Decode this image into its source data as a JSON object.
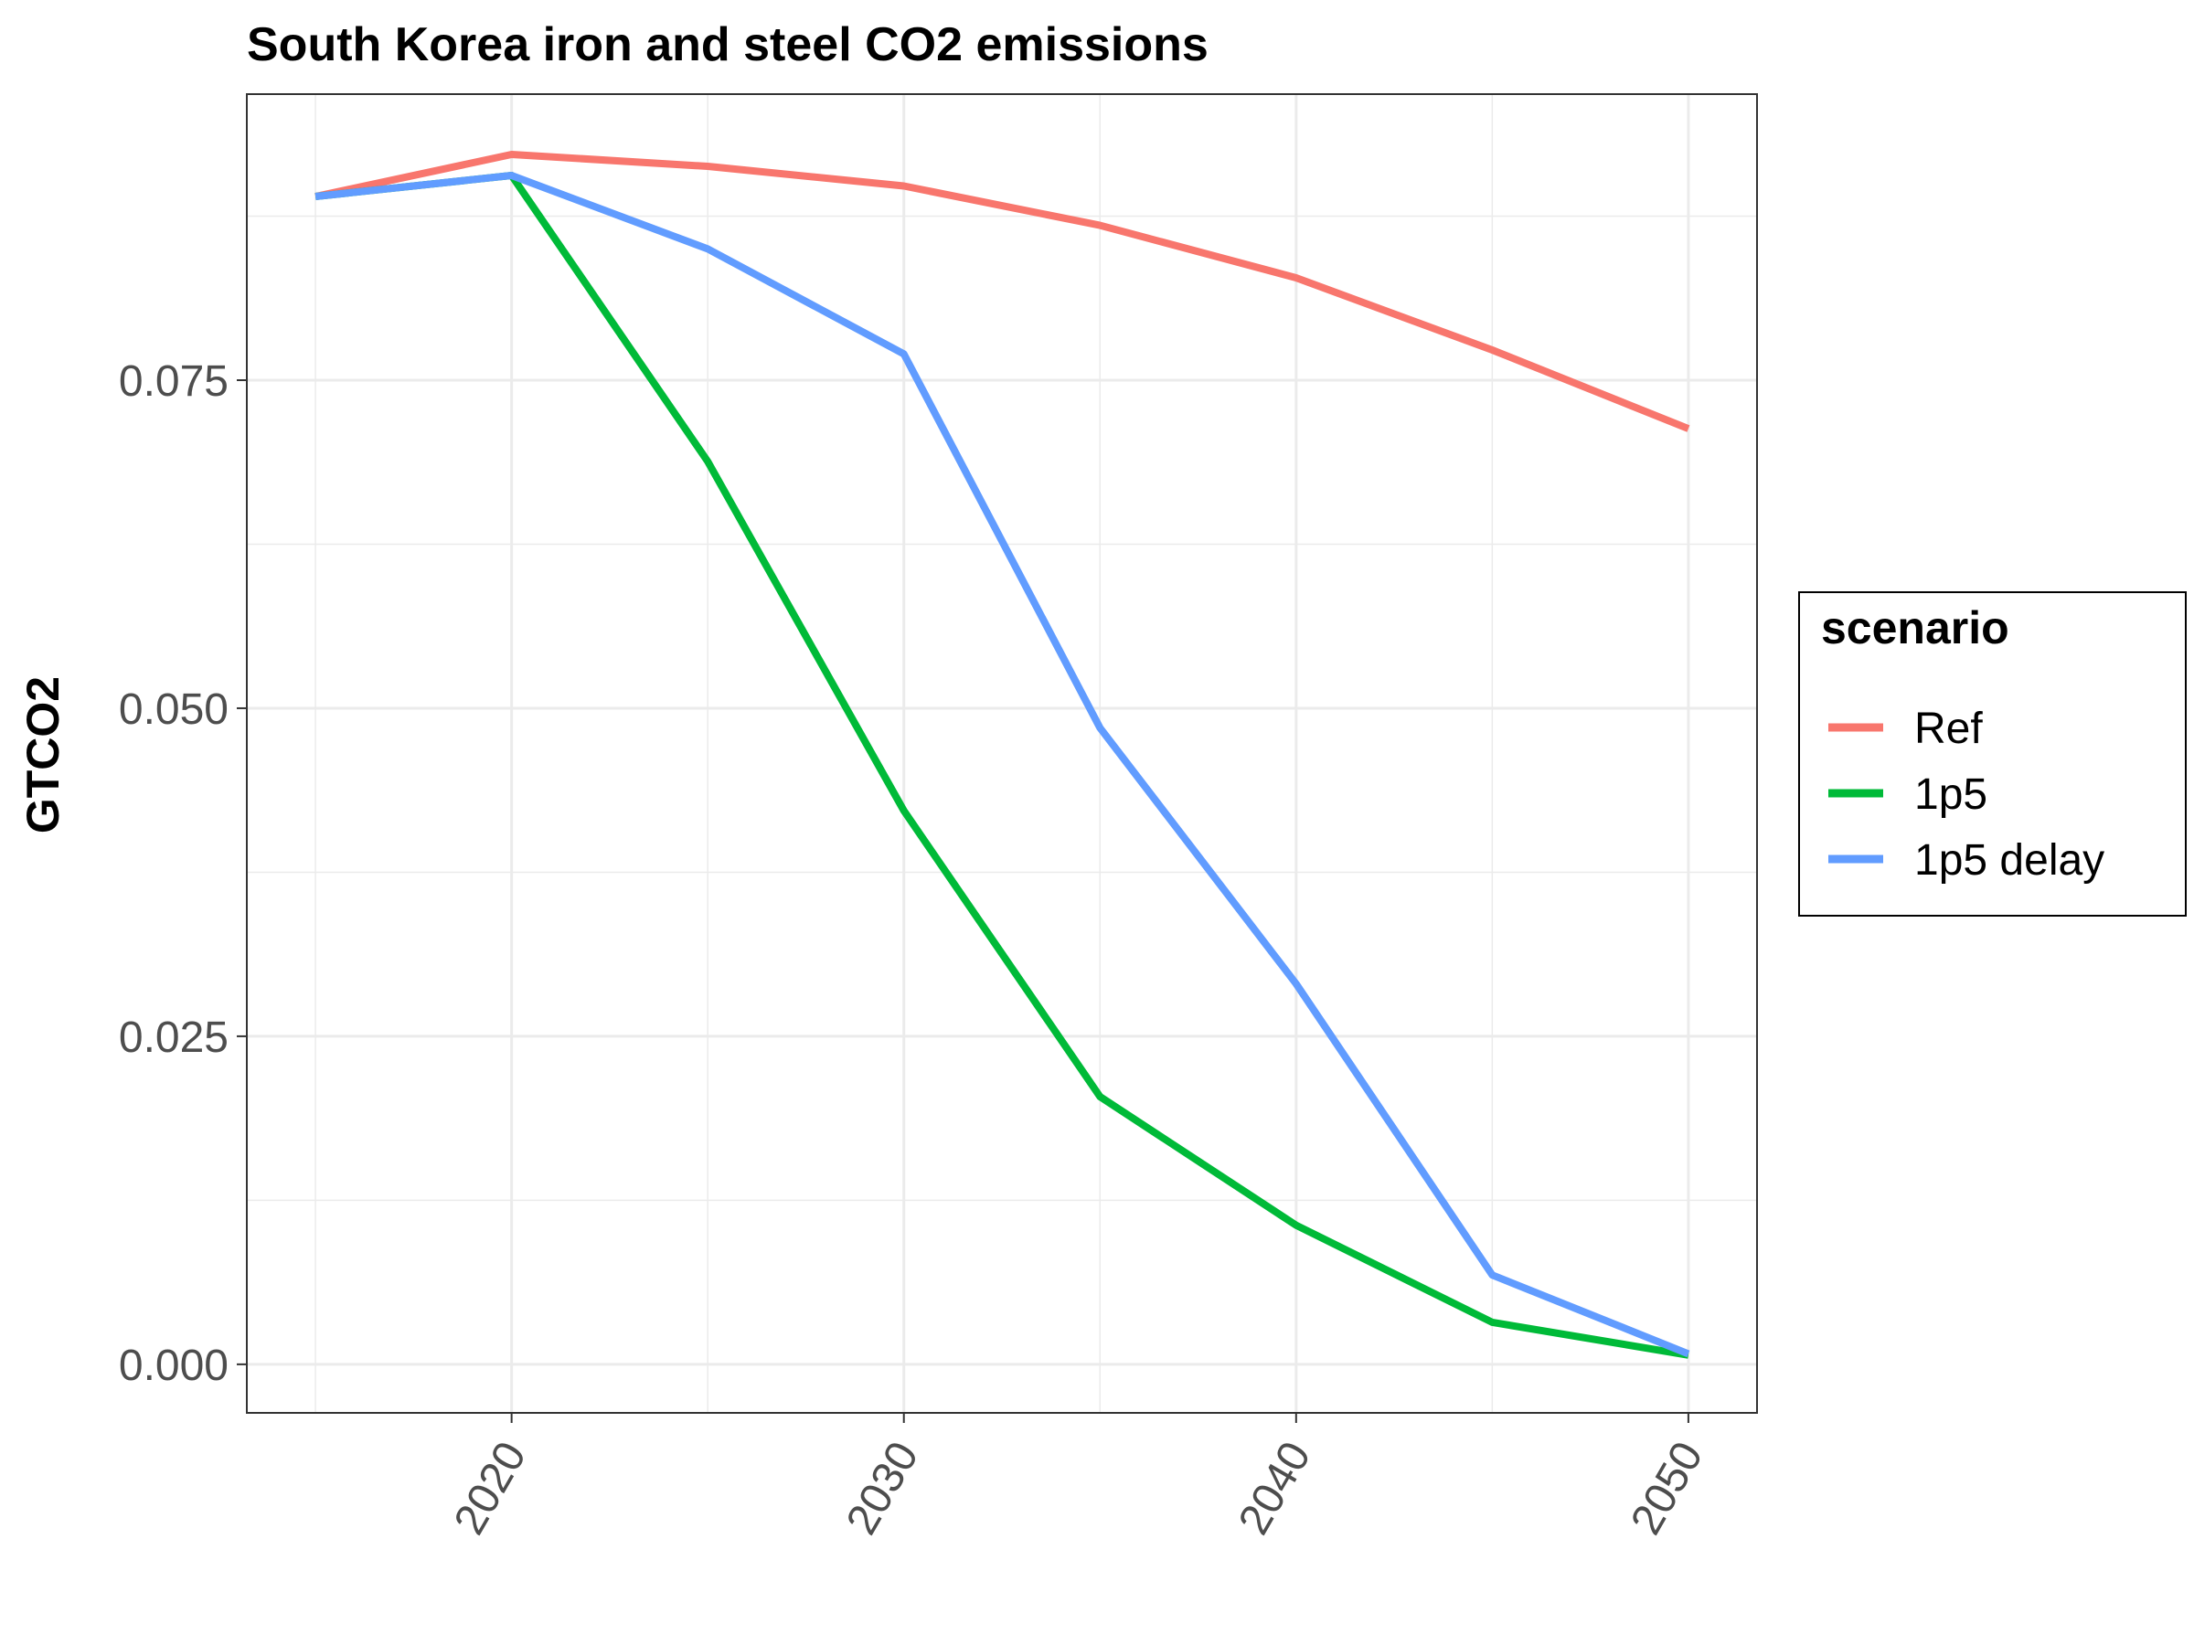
{
  "chart_data": {
    "type": "line",
    "title": "South Korea iron and steel CO2 emissions",
    "xlabel": "",
    "ylabel": "GTCO2",
    "x": [
      2015,
      2020,
      2025,
      2030,
      2035,
      2040,
      2045,
      2050
    ],
    "xlim": [
      2013.25,
      2051.75
    ],
    "ylim": [
      -0.0037,
      0.0968
    ],
    "x_ticks": [
      2020,
      2030,
      2040,
      2050
    ],
    "x_tick_labels": [
      "2020",
      "2030",
      "2040",
      "2050"
    ],
    "y_ticks": [
      0.0,
      0.025,
      0.05,
      0.075
    ],
    "y_tick_labels": [
      "0.000",
      "0.025",
      "0.050",
      "0.075"
    ],
    "grid": true,
    "legend": {
      "title": "scenario",
      "position": "right"
    },
    "series": [
      {
        "name": "Ref",
        "color": "#F8766D",
        "values": [
          0.089,
          0.0922,
          0.0913,
          0.0898,
          0.0868,
          0.0828,
          0.0773,
          0.0713
        ]
      },
      {
        "name": "1p5",
        "color": "#00BA38",
        "values": [
          0.089,
          0.0906,
          0.0688,
          0.0422,
          0.0204,
          0.0106,
          0.0032,
          0.0007
        ]
      },
      {
        "name": "1p5 delay",
        "color": "#619CFF",
        "values": [
          0.089,
          0.0906,
          0.085,
          0.077,
          0.0485,
          0.029,
          0.0068,
          0.0008
        ]
      }
    ]
  }
}
